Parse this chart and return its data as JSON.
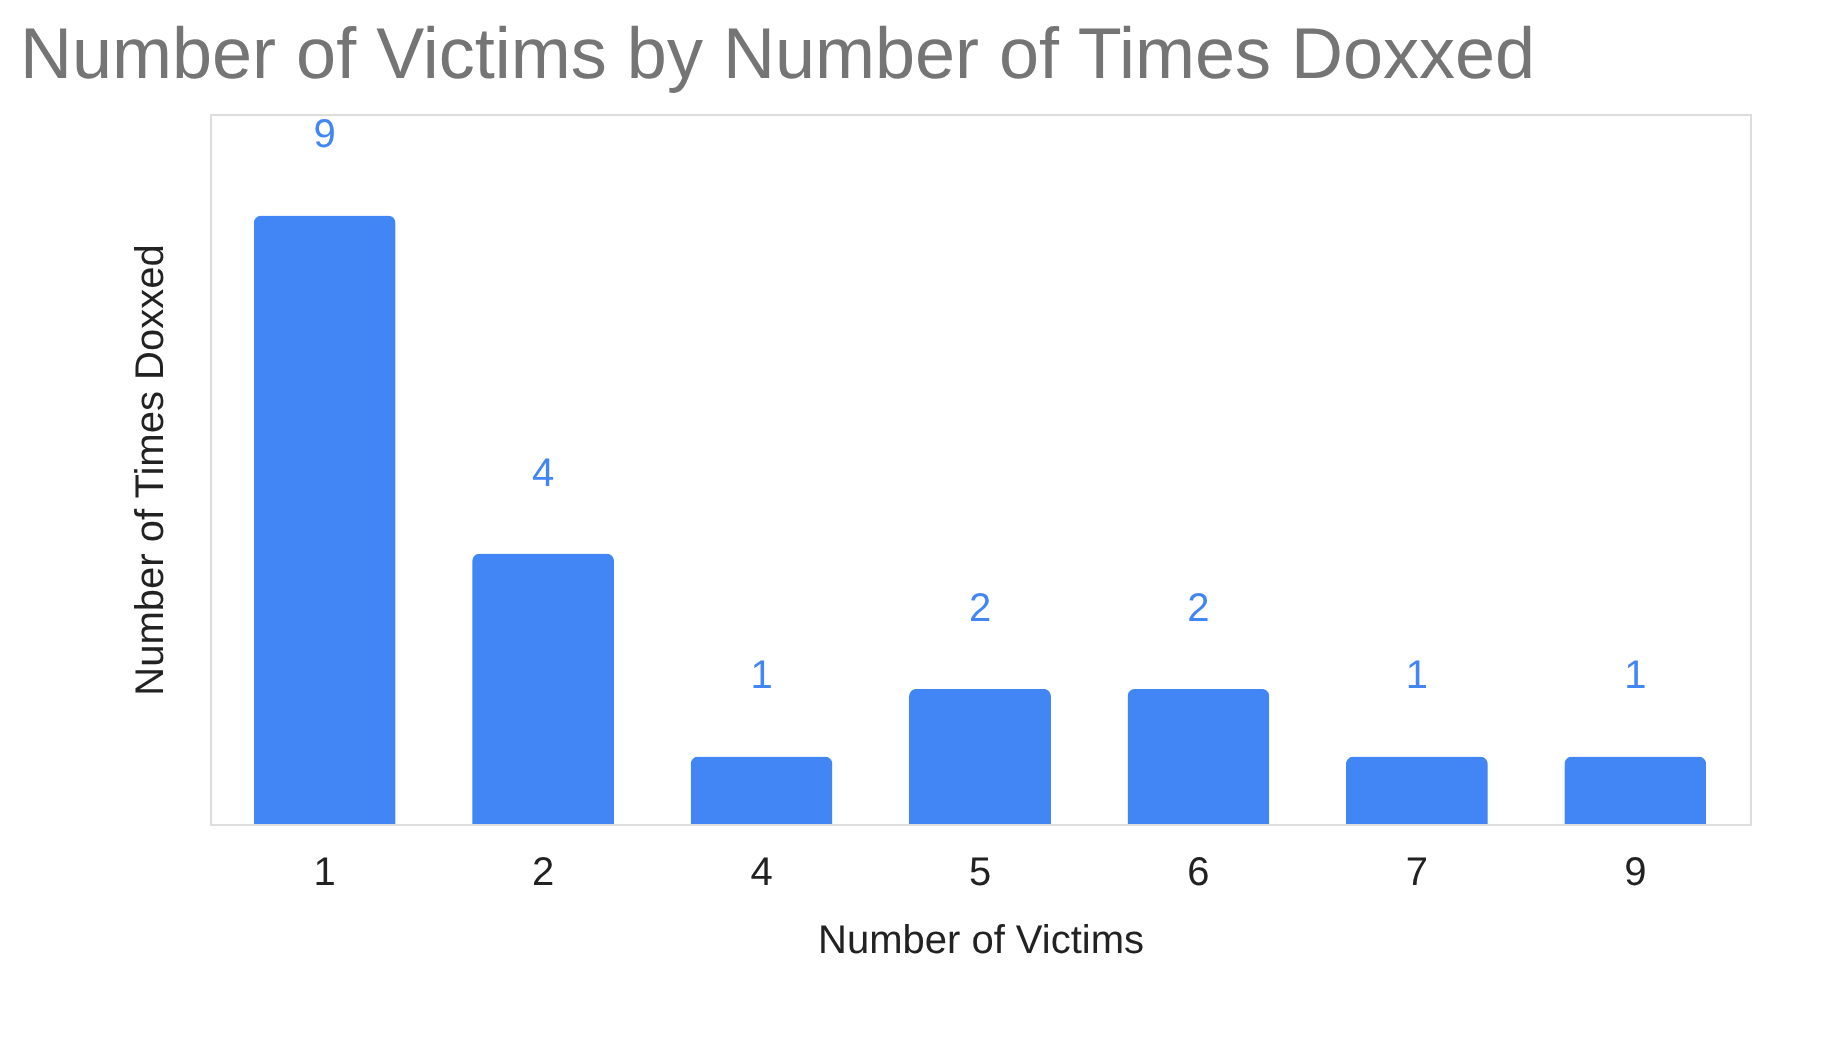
{
  "chart_data": {
    "type": "bar",
    "title": "Number of Victims by Number of Times Doxxed",
    "xlabel": "Number of Victims",
    "ylabel": "Number of Times Doxxed",
    "categories": [
      "1",
      "2",
      "4",
      "5",
      "6",
      "7",
      "9"
    ],
    "values": [
      9,
      4,
      1,
      2,
      2,
      1,
      1
    ],
    "color": "#4285f4",
    "data_labels": true,
    "ylim": [
      0,
      10.5
    ],
    "tick_labels": "x",
    "grid": false
  }
}
